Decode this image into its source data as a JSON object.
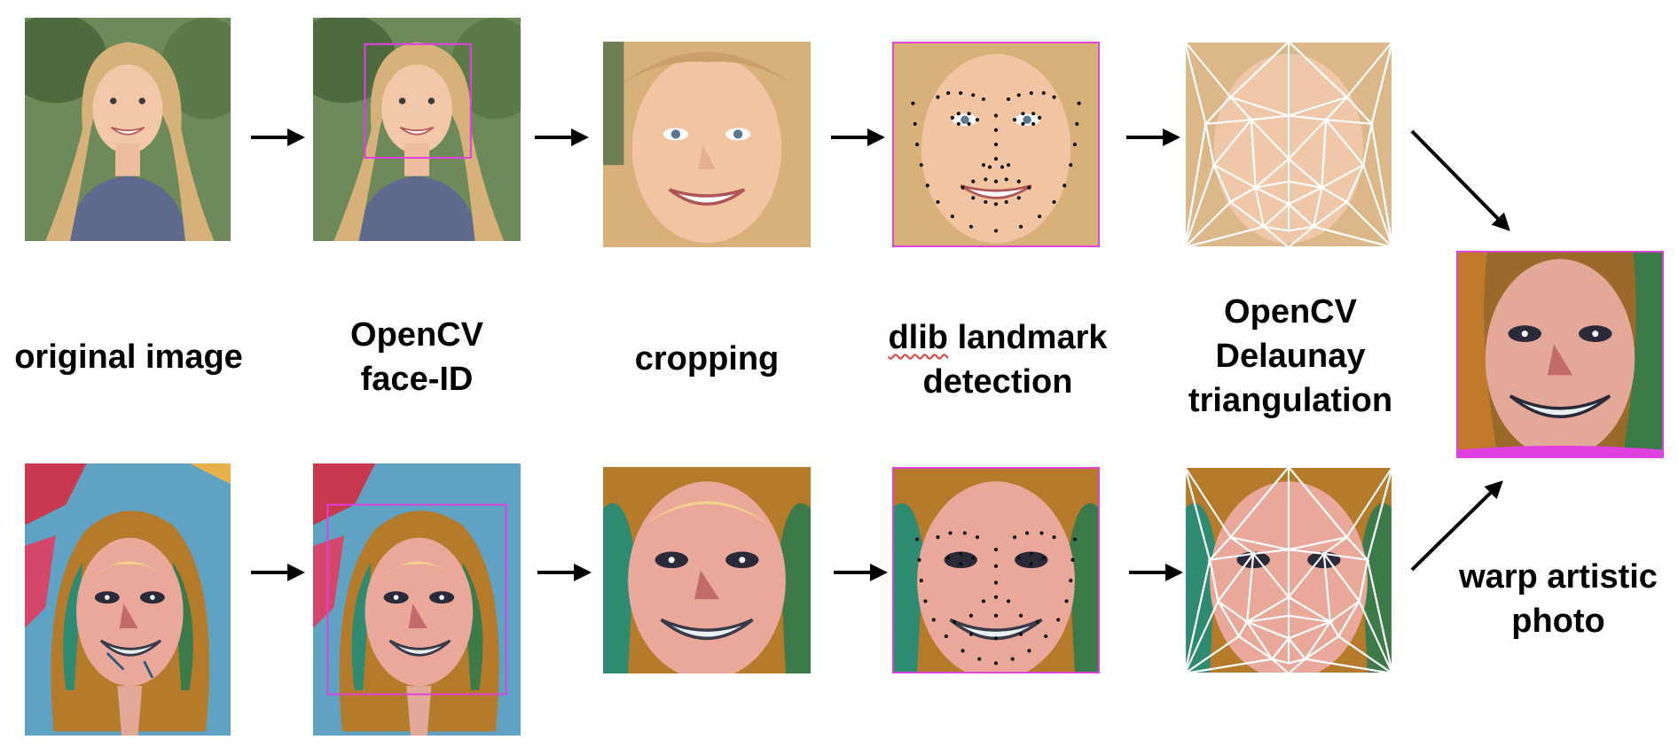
{
  "stages": {
    "original": {
      "lines": [
        "original image"
      ]
    },
    "face_id": {
      "lines": [
        "OpenCV",
        "face-ID"
      ]
    },
    "cropping": {
      "lines": [
        "cropping"
      ]
    },
    "landmarks": {
      "lines": [
        "landmark",
        "detection"
      ],
      "prefix": "dlib"
    },
    "delaunay": {
      "lines": [
        "OpenCV",
        "Delaunay",
        "triangulation"
      ]
    },
    "warp": {
      "lines": [
        "warp artistic",
        "photo"
      ]
    }
  },
  "rows": {
    "top": "photograph of a smiling woman with long blonde hair",
    "bottom": "painted artistic portrait of the same woman"
  },
  "colors": {
    "bounding_box": "#e040e0",
    "landmark_dot": "#111111",
    "triangle_mesh": "#ffffff",
    "arrow": "#000000"
  }
}
